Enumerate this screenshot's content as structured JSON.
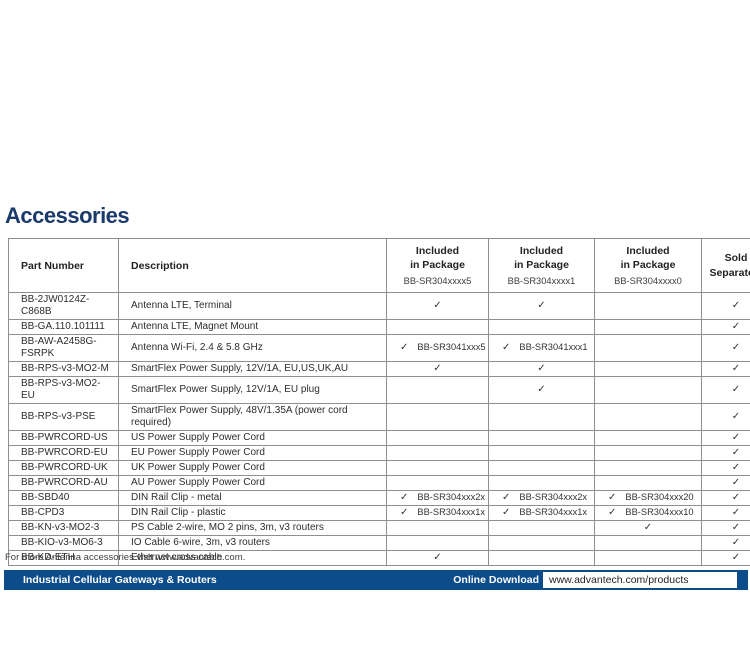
{
  "page": {
    "title": "Accessories",
    "note": "For more Antenna accessories visit www.advantech.com.",
    "footer": {
      "product_line": "Industrial Cellular Gateways & Routers",
      "download_label": "Online Download",
      "download_url": "www.advantech.com/products"
    },
    "colors": {
      "title_navy": "#1a3a6c",
      "footer_navy": "#0c4c8b",
      "table_border_gray": "#8f8f8f",
      "body_text": "#2d2d2d"
    }
  },
  "table": {
    "check_mark": "✓",
    "headers": {
      "part_number": "Part Number",
      "description": "Description",
      "pkg_cols": [
        {
          "line1": "Included",
          "line2": "in Package",
          "model": "BB-SR304xxxx5"
        },
        {
          "line1": "Included",
          "line2": "in Package",
          "model": "BB-SR304xxxx1"
        },
        {
          "line1": "Included",
          "line2": "in Package",
          "model": "BB-SR304xxxx0"
        }
      ],
      "sold": {
        "line1": "Sold",
        "line2": "Separately"
      }
    },
    "rows": [
      {
        "part": "BB-2JW0124Z-C868B",
        "desc": "Antenna LTE, Terminal",
        "pkg": [
          true,
          true,
          null
        ],
        "sold": true
      },
      {
        "part": "BB-GA.110.101111",
        "desc": "Antenna LTE, Magnet Mount",
        "pkg": [
          null,
          null,
          null
        ],
        "sold": true
      },
      {
        "part": "BB-AW-A2458G-FSRPK",
        "desc": "Antenna Wi-Fi, 2.4 & 5.8 GHz",
        "pkg": [
          "BB-SR3041xxx5",
          "BB-SR3041xxx1",
          null
        ],
        "sold": true
      },
      {
        "part": "BB-RPS-v3-MO2-M",
        "desc": "SmartFlex Power Supply, 12V/1A, EU,US,UK,AU",
        "pkg": [
          true,
          true,
          null
        ],
        "sold": true
      },
      {
        "part": "BB-RPS-v3-MO2-EU",
        "desc": "SmartFlex Power Supply, 12V/1A, EU plug",
        "pkg": [
          null,
          true,
          null
        ],
        "sold": true
      },
      {
        "part": "BB-RPS-v3-PSE",
        "desc": "SmartFlex Power Supply, 48V/1.35A (power cord required)",
        "pkg": [
          null,
          null,
          null
        ],
        "sold": true
      },
      {
        "part": "BB-PWRCORD-US",
        "desc": "US Power Supply Power Cord",
        "pkg": [
          null,
          null,
          null
        ],
        "sold": true
      },
      {
        "part": "BB-PWRCORD-EU",
        "desc": "EU Power Supply Power Cord",
        "pkg": [
          null,
          null,
          null
        ],
        "sold": true
      },
      {
        "part": "BB-PWRCORD-UK",
        "desc": "UK Power Supply Power Cord",
        "pkg": [
          null,
          null,
          null
        ],
        "sold": true
      },
      {
        "part": "BB-PWRCORD-AU",
        "desc": "AU Power Supply Power Cord",
        "pkg": [
          null,
          null,
          null
        ],
        "sold": true
      },
      {
        "part": "BB-SBD40",
        "desc": "DIN Rail Clip - metal",
        "pkg": [
          "BB-SR304xxx2x",
          "BB-SR304xxx2x",
          "BB-SR304xxx20"
        ],
        "sold": true
      },
      {
        "part": "BB-CPD3",
        "desc": "DIN Rail Clip - plastic",
        "pkg": [
          "BB-SR304xxx1x",
          "BB-SR304xxx1x",
          "BB-SR304xxx10"
        ],
        "sold": true
      },
      {
        "part": "BB-KN-v3-MO2-3",
        "desc": "PS Cable 2-wire, MO 2 pins, 3m, v3 routers",
        "pkg": [
          null,
          null,
          true
        ],
        "sold": true
      },
      {
        "part": "BB-KIO-v3-MO6-3",
        "desc": "IO Cable 6-wire, 3m, v3 routers",
        "pkg": [
          null,
          null,
          null
        ],
        "sold": true
      },
      {
        "part": "BB-KD-ETH",
        "desc": "Ethernet cross cable",
        "pkg": [
          true,
          null,
          null
        ],
        "sold": true
      }
    ]
  }
}
